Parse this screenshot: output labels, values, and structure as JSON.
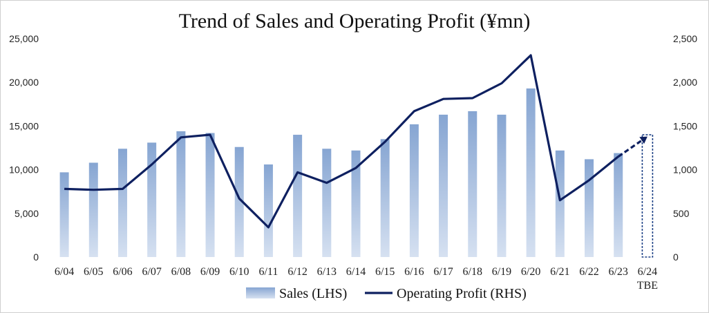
{
  "chart_data": {
    "type": "bar+line",
    "title": "Trend of Sales and Operating Profit (¥mn)",
    "categories": [
      "6/04",
      "6/05",
      "6/06",
      "6/07",
      "6/08",
      "6/09",
      "6/10",
      "6/11",
      "6/12",
      "6/13",
      "6/14",
      "6/15",
      "6/16",
      "6/17",
      "6/18",
      "6/19",
      "6/20",
      "6/21",
      "6/22",
      "6/23",
      "6/24"
    ],
    "category_sublabels": {
      "20": "TBE"
    },
    "left_axis": {
      "ylim": [
        0,
        25000
      ],
      "ticks": [
        "0",
        "5,000",
        "10,000",
        "15,000",
        "20,000",
        "25,000"
      ]
    },
    "right_axis": {
      "ylim": [
        0,
        2500
      ],
      "ticks": [
        "0",
        "500",
        "1,000",
        "1,500",
        "2,000",
        "2,500"
      ]
    },
    "series": [
      {
        "name": "Sales (LHS)",
        "kind": "bar",
        "axis": "left",
        "color": "#9fb8dc",
        "values": [
          9700,
          10800,
          12400,
          13100,
          14400,
          14200,
          12600,
          10600,
          14000,
          12400,
          12200,
          13500,
          15200,
          16300,
          16700,
          16300,
          19300,
          12200,
          11200,
          11900,
          14000
        ]
      },
      {
        "name": "Operating Profit (RHS)",
        "kind": "line",
        "axis": "right",
        "color": "#0e2060",
        "values": [
          780,
          770,
          780,
          1060,
          1370,
          1400,
          670,
          340,
          970,
          850,
          1020,
          1320,
          1670,
          1810,
          1820,
          1990,
          2310,
          650,
          880,
          1150,
          1380
        ]
      }
    ],
    "estimate_index": 20,
    "legend_position": "bottom",
    "grid": false
  }
}
